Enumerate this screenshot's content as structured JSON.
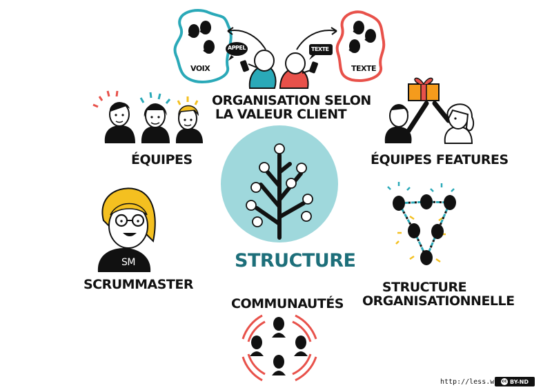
{
  "labels": {
    "voix": "VOIX",
    "texte": "TEXTE",
    "appel_bubble": "APPEL",
    "texte_bubble": "TEXTE",
    "organisation_line1": "ORGANISATION SELON",
    "organisation_line2": "LA VALEUR CLIENT",
    "equipes": "ÉQUIPES",
    "equipes_features": "ÉQUIPES FEATURES",
    "scrummaster": "SCRUMMASTER",
    "sm_shirt": "SM",
    "structure_center": "STRUCTURE",
    "structure_org_line1": "STRUCTURE",
    "structure_org_line2": "ORGANISATIONNELLE",
    "communautes": "COMMUNAUTÉS"
  },
  "footer": {
    "url": "http://less.works",
    "license": "BY-ND",
    "cc": "cc"
  },
  "colors": {
    "teal": "#2aa9b8",
    "teal_light": "#9fd8dc",
    "red": "#e8514a",
    "yellow": "#f4c020",
    "black": "#111111",
    "gift_orange": "#f59b1c",
    "structure_text": "#1d6f7a"
  },
  "icons": [
    "voice-cluster-icon",
    "text-cluster-icon",
    "phone-caller-icon",
    "texter-icon",
    "team-faces-icon",
    "gift-handover-icon",
    "scrummaster-face-icon",
    "apple-tree-icon",
    "org-network-icon",
    "community-circle-icon"
  ]
}
